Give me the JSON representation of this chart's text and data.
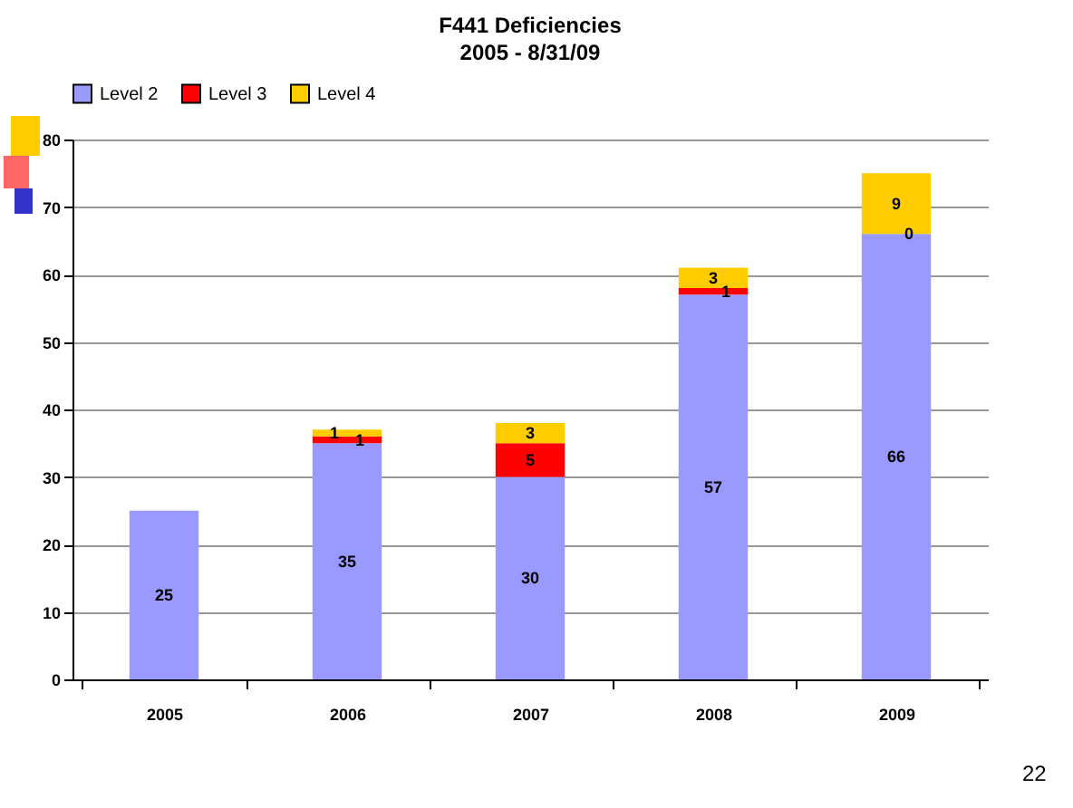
{
  "chart_data": {
    "type": "bar",
    "title": "F441 Deficiencies",
    "subtitle": "2005 - 8/31/09",
    "stacked": true,
    "categories": [
      "2005",
      "2006",
      "2007",
      "2008",
      "2009"
    ],
    "series": [
      {
        "name": "Level 2",
        "color": "#9999ff",
        "values": [
          25,
          35,
          30,
          57,
          66
        ],
        "value_labels": [
          "25",
          "35",
          "30",
          "57",
          "66"
        ]
      },
      {
        "name": "Level 3",
        "color": "#ff0000",
        "values": [
          0,
          1,
          5,
          1,
          0
        ],
        "value_labels": [
          null,
          "1",
          "5",
          "1",
          "0"
        ]
      },
      {
        "name": "Level 4",
        "color": "#ffcc00",
        "values": [
          0,
          1,
          3,
          3,
          9
        ],
        "value_labels": [
          null,
          "1",
          "3",
          "3",
          "9"
        ]
      }
    ],
    "ylim": [
      0,
      80
    ],
    "yticks": [
      0,
      10,
      20,
      30,
      40,
      50,
      60,
      70,
      80
    ],
    "grid": "y",
    "legend": "top",
    "annotations": [
      "22"
    ]
  }
}
